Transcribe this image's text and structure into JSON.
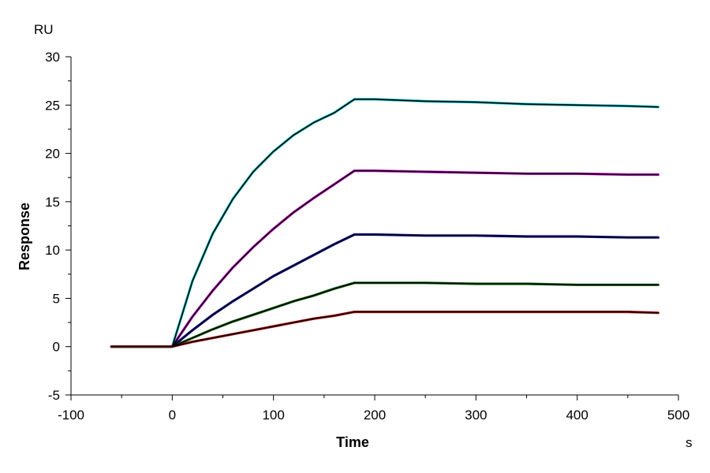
{
  "chart_data": {
    "type": "line",
    "title": "",
    "xlabel": "Time",
    "ylabel": "Response",
    "x_unit": "s",
    "y_unit": "RU",
    "xlim": [
      -100,
      500
    ],
    "ylim": [
      -5,
      30
    ],
    "x_ticks": [
      "-100",
      "0",
      "100",
      "200",
      "300",
      "400",
      "500"
    ],
    "y_ticks": [
      "-5",
      "0",
      "5",
      "10",
      "15",
      "20",
      "25",
      "30"
    ],
    "grid": false,
    "legend": "none",
    "association_end": 180,
    "series": [
      {
        "color": "#00c8d0",
        "x": [
          -60,
          0,
          20,
          40,
          60,
          80,
          100,
          120,
          140,
          160,
          180,
          200,
          250,
          300,
          350,
          400,
          450,
          480
        ],
        "values": [
          0,
          0,
          6.8,
          11.7,
          15.3,
          18.1,
          20.2,
          21.9,
          23.2,
          24.2,
          25.6,
          25.6,
          25.4,
          25.3,
          25.1,
          25.0,
          24.9,
          24.8
        ]
      },
      {
        "color": "#d000d0",
        "x": [
          -60,
          0,
          20,
          40,
          60,
          80,
          100,
          120,
          140,
          160,
          180,
          200,
          250,
          300,
          350,
          400,
          450,
          480
        ],
        "values": [
          0,
          0,
          3.1,
          5.8,
          8.2,
          10.3,
          12.2,
          13.9,
          15.4,
          16.8,
          18.2,
          18.2,
          18.1,
          18.0,
          17.9,
          17.9,
          17.8,
          17.8
        ]
      },
      {
        "color": "#1010b0",
        "x": [
          -60,
          0,
          20,
          40,
          60,
          80,
          100,
          120,
          140,
          160,
          180,
          200,
          250,
          300,
          350,
          400,
          450,
          480
        ],
        "values": [
          0,
          0,
          1.7,
          3.3,
          4.7,
          6.0,
          7.3,
          8.4,
          9.5,
          10.6,
          11.6,
          11.6,
          11.5,
          11.5,
          11.4,
          11.4,
          11.3,
          11.3
        ]
      },
      {
        "color": "#107010",
        "x": [
          -60,
          0,
          20,
          40,
          60,
          80,
          100,
          120,
          140,
          160,
          180,
          200,
          250,
          300,
          350,
          400,
          450,
          480
        ],
        "values": [
          0,
          0,
          0.9,
          1.8,
          2.6,
          3.3,
          4.0,
          4.7,
          5.3,
          6.0,
          6.6,
          6.6,
          6.6,
          6.5,
          6.5,
          6.4,
          6.4,
          6.4
        ]
      },
      {
        "color": "#c01010",
        "x": [
          -60,
          0,
          20,
          40,
          60,
          80,
          100,
          120,
          140,
          160,
          180,
          200,
          250,
          300,
          350,
          400,
          450,
          480
        ],
        "values": [
          0,
          0,
          0.5,
          0.9,
          1.3,
          1.7,
          2.1,
          2.5,
          2.9,
          3.2,
          3.6,
          3.6,
          3.6,
          3.6,
          3.6,
          3.6,
          3.6,
          3.5
        ]
      }
    ]
  }
}
